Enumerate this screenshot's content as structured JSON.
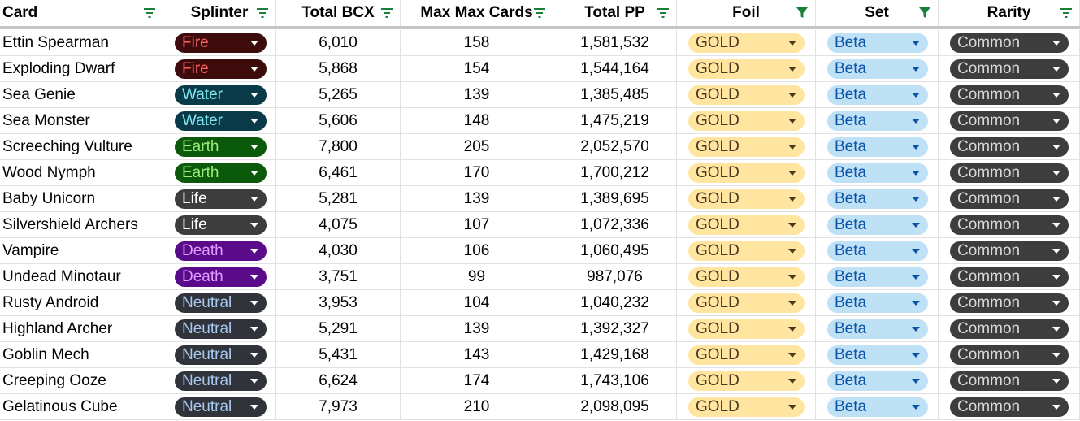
{
  "columns": [
    "Card",
    "Splinter",
    "Total BCX",
    "Max Max Cards",
    "Total PP",
    "Foil",
    "Set",
    "Rarity"
  ],
  "filters": [
    {
      "icon": "filter-icon",
      "active": false
    },
    {
      "icon": "filter-icon",
      "active": false
    },
    {
      "icon": "filter-icon",
      "active": false
    },
    {
      "icon": "filter-icon",
      "active": false
    },
    {
      "icon": "filter-icon",
      "active": false
    },
    {
      "icon": "filter-active-icon",
      "active": true
    },
    {
      "icon": "filter-active-icon",
      "active": true
    },
    {
      "icon": "filter-icon",
      "active": false
    }
  ],
  "splinter_colors": {
    "Fire": {
      "bg": "#3d0b0b",
      "fg": "#ff5e5e",
      "arrow": "#ffffff"
    },
    "Water": {
      "bg": "#0a3a47",
      "fg": "#7ee8f2",
      "arrow": "#ffffff"
    },
    "Earth": {
      "bg": "#0b5a0b",
      "fg": "#9eea7a",
      "arrow": "#ffffff"
    },
    "Life": {
      "bg": "#3d3d3d",
      "fg": "#ffffff",
      "arrow": "#ffffff"
    },
    "Death": {
      "bg": "#5a0b8a",
      "fg": "#e29cff",
      "arrow": "#ffffff"
    },
    "Neutral": {
      "bg": "#30343a",
      "fg": "#a8c8f0",
      "arrow": "#ffffff"
    }
  },
  "rows": [
    {
      "card": "Ettin Spearman",
      "splinter": "Fire",
      "bcx": "6,010",
      "max": "158",
      "pp": "1,581,532",
      "foil": "GOLD",
      "set": "Beta",
      "rarity": "Common"
    },
    {
      "card": "Exploding Dwarf",
      "splinter": "Fire",
      "bcx": "5,868",
      "max": "154",
      "pp": "1,544,164",
      "foil": "GOLD",
      "set": "Beta",
      "rarity": "Common"
    },
    {
      "card": "Sea Genie",
      "splinter": "Water",
      "bcx": "5,265",
      "max": "139",
      "pp": "1,385,485",
      "foil": "GOLD",
      "set": "Beta",
      "rarity": "Common"
    },
    {
      "card": "Sea Monster",
      "splinter": "Water",
      "bcx": "5,606",
      "max": "148",
      "pp": "1,475,219",
      "foil": "GOLD",
      "set": "Beta",
      "rarity": "Common"
    },
    {
      "card": "Screeching Vulture",
      "splinter": "Earth",
      "bcx": "7,800",
      "max": "205",
      "pp": "2,052,570",
      "foil": "GOLD",
      "set": "Beta",
      "rarity": "Common"
    },
    {
      "card": "Wood Nymph",
      "splinter": "Earth",
      "bcx": "6,461",
      "max": "170",
      "pp": "1,700,212",
      "foil": "GOLD",
      "set": "Beta",
      "rarity": "Common"
    },
    {
      "card": "Baby Unicorn",
      "splinter": "Life",
      "bcx": "5,281",
      "max": "139",
      "pp": "1,389,695",
      "foil": "GOLD",
      "set": "Beta",
      "rarity": "Common"
    },
    {
      "card": "Silvershield Archers",
      "splinter": "Life",
      "bcx": "4,075",
      "max": "107",
      "pp": "1,072,336",
      "foil": "GOLD",
      "set": "Beta",
      "rarity": "Common"
    },
    {
      "card": "Vampire",
      "splinter": "Death",
      "bcx": "4,030",
      "max": "106",
      "pp": "1,060,495",
      "foil": "GOLD",
      "set": "Beta",
      "rarity": "Common"
    },
    {
      "card": "Undead Minotaur",
      "splinter": "Death",
      "bcx": "3,751",
      "max": "99",
      "pp": "987,076",
      "foil": "GOLD",
      "set": "Beta",
      "rarity": "Common"
    },
    {
      "card": "Rusty Android",
      "splinter": "Neutral",
      "bcx": "3,953",
      "max": "104",
      "pp": "1,040,232",
      "foil": "GOLD",
      "set": "Beta",
      "rarity": "Common"
    },
    {
      "card": "Highland Archer",
      "splinter": "Neutral",
      "bcx": "5,291",
      "max": "139",
      "pp": "1,392,327",
      "foil": "GOLD",
      "set": "Beta",
      "rarity": "Common"
    },
    {
      "card": "Goblin Mech",
      "splinter": "Neutral",
      "bcx": "5,431",
      "max": "143",
      "pp": "1,429,168",
      "foil": "GOLD",
      "set": "Beta",
      "rarity": "Common"
    },
    {
      "card": "Creeping Ooze",
      "splinter": "Neutral",
      "bcx": "6,624",
      "max": "174",
      "pp": "1,743,106",
      "foil": "GOLD",
      "set": "Beta",
      "rarity": "Common"
    },
    {
      "card": "Gelatinous Cube",
      "splinter": "Neutral",
      "bcx": "7,973",
      "max": "210",
      "pp": "2,098,095",
      "foil": "GOLD",
      "set": "Beta",
      "rarity": "Common"
    }
  ]
}
